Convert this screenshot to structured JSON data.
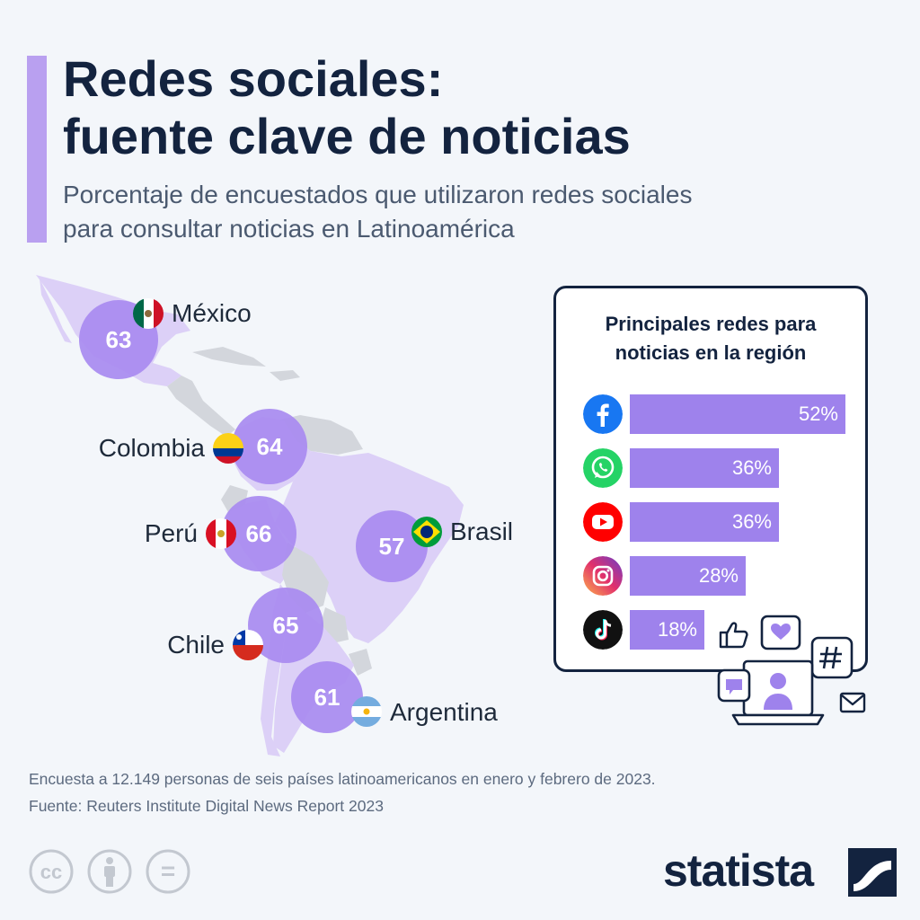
{
  "header": {
    "title_line1": "Redes sociales:",
    "title_line2": "fuente clave de noticias",
    "subtitle_line1": "Porcentaje de encuestados que utilizaron redes sociales",
    "subtitle_line2": "para consultar noticias en Latinoamérica"
  },
  "chart_data": [
    {
      "type": "bubble-map",
      "title": "Porcentaje de encuestados que utilizaron redes sociales para consultar noticias en Latinoamérica",
      "unit": "%",
      "categories": [
        "México",
        "Colombia",
        "Perú",
        "Brasil",
        "Chile",
        "Argentina"
      ],
      "values": [
        63,
        64,
        66,
        57,
        65,
        61
      ]
    },
    {
      "type": "bar",
      "title": "Principales redes para noticias en la región",
      "categories": [
        "Facebook",
        "WhatsApp",
        "YouTube",
        "Instagram",
        "TikTok"
      ],
      "values": [
        52,
        36,
        36,
        28,
        18
      ],
      "labels": [
        "52%",
        "36%",
        "36%",
        "28%",
        "18%"
      ],
      "orientation": "horizontal",
      "xlim": [
        0,
        52
      ]
    }
  ],
  "panel": {
    "title_line1": "Principales redes para",
    "title_line2": "noticias en la región"
  },
  "networks_icons": [
    "facebook-icon",
    "whatsapp-icon",
    "youtube-icon",
    "instagram-icon",
    "tiktok-icon"
  ],
  "colors": {
    "accent": "#b9a0f0",
    "bubble": "#a88af0",
    "bar": "#9e82ec",
    "navy": "#13233f",
    "land": "#dcd0f7",
    "land_gray": "#d3d6dc",
    "facebook": "#1877f2",
    "whatsapp": "#25d366",
    "youtube": "#ff0000",
    "tiktok": "#111111"
  },
  "footer": {
    "note": "Encuesta a 12.149 personas de seis países latinoamericanos en enero y febrero de 2023.",
    "source": "Fuente: Reuters Institute Digital News Report 2023"
  },
  "license": {
    "cc": "cc",
    "eq": "="
  },
  "brand": {
    "name": "statista"
  }
}
